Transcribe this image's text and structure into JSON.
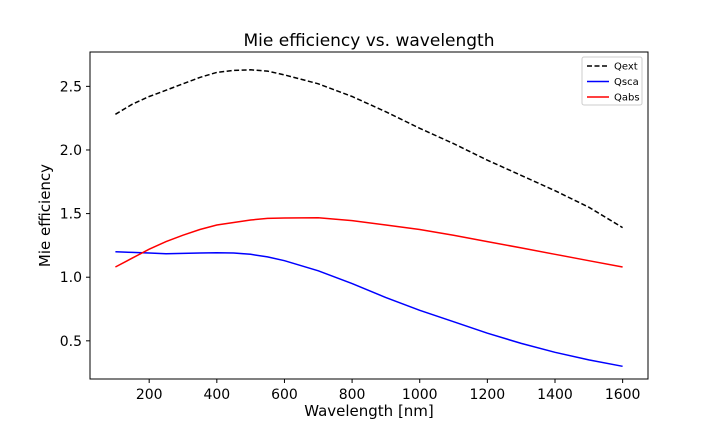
{
  "chart_data": {
    "type": "line",
    "title": "Mie efficiency vs. wavelength",
    "xlabel": "Wavelength [nm]",
    "ylabel": "Mie efficiency",
    "xlim": [
      25,
      1675
    ],
    "ylim": [
      0.2,
      2.77
    ],
    "xticks": [
      200,
      400,
      600,
      800,
      1000,
      1200,
      1400,
      1600
    ],
    "yticks": [
      0.5,
      1.0,
      1.5,
      2.0,
      2.5
    ],
    "xtick_labels": [
      "200",
      "400",
      "600",
      "800",
      "1000",
      "1200",
      "1400",
      "1600"
    ],
    "ytick_labels": [
      "0.5",
      "1.0",
      "1.5",
      "2.0",
      "2.5"
    ],
    "grid": false,
    "legend_position": "top-right",
    "series": [
      {
        "name": "Qext",
        "color": "#000000",
        "dash": "dashed",
        "x": [
          100,
          150,
          200,
          250,
          300,
          350,
          400,
          450,
          500,
          550,
          600,
          700,
          800,
          900,
          1000,
          1100,
          1200,
          1300,
          1400,
          1500,
          1600
        ],
        "y": [
          2.28,
          2.36,
          2.42,
          2.47,
          2.52,
          2.57,
          2.61,
          2.625,
          2.63,
          2.62,
          2.59,
          2.52,
          2.42,
          2.3,
          2.17,
          2.05,
          1.92,
          1.8,
          1.68,
          1.55,
          1.39
        ]
      },
      {
        "name": "Qsca",
        "color": "#0000ff",
        "dash": "solid",
        "x": [
          100,
          150,
          200,
          250,
          300,
          350,
          400,
          450,
          500,
          550,
          600,
          700,
          800,
          900,
          1000,
          1100,
          1200,
          1300,
          1400,
          1500,
          1600
        ],
        "y": [
          1.2,
          1.195,
          1.19,
          1.185,
          1.187,
          1.19,
          1.193,
          1.19,
          1.18,
          1.16,
          1.13,
          1.05,
          0.95,
          0.84,
          0.74,
          0.65,
          0.56,
          0.48,
          0.41,
          0.35,
          0.3
        ]
      },
      {
        "name": "Qabs",
        "color": "#ff0000",
        "dash": "solid",
        "x": [
          100,
          150,
          200,
          250,
          300,
          350,
          400,
          450,
          500,
          550,
          600,
          700,
          800,
          900,
          1000,
          1100,
          1200,
          1300,
          1400,
          1500,
          1600
        ],
        "y": [
          1.08,
          1.15,
          1.22,
          1.28,
          1.33,
          1.375,
          1.41,
          1.43,
          1.45,
          1.462,
          1.465,
          1.467,
          1.445,
          1.41,
          1.375,
          1.33,
          1.28,
          1.23,
          1.18,
          1.13,
          1.08
        ]
      }
    ]
  }
}
